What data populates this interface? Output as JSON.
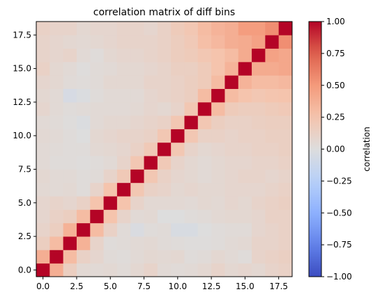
{
  "chart_data": {
    "type": "heatmap",
    "title": "correlation matrix of diff bins",
    "xlabel": "",
    "ylabel": "",
    "n_bins": 19,
    "origin": "lower",
    "x_ticks": [
      0.0,
      2.5,
      5.0,
      7.5,
      10.0,
      12.5,
      15.0,
      17.5
    ],
    "x_tick_labels": [
      "0.0",
      "2.5",
      "5.0",
      "7.5",
      "10.0",
      "12.5",
      "15.0",
      "17.5"
    ],
    "y_ticks": [
      0.0,
      2.5,
      5.0,
      7.5,
      10.0,
      12.5,
      15.0,
      17.5
    ],
    "y_tick_labels": [
      "0.0",
      "2.5",
      "5.0",
      "7.5",
      "10.0",
      "12.5",
      "15.0",
      "17.5"
    ],
    "xlim": [
      -0.5,
      18.5
    ],
    "ylim": [
      -0.5,
      18.5
    ],
    "colormap": "coolwarm",
    "vmin": -1.0,
    "vmax": 1.0,
    "colorbar": {
      "label": "correlation",
      "ticks": [
        -1.0,
        -0.75,
        -0.5,
        -0.25,
        0.0,
        0.25,
        0.5,
        0.75,
        1.0
      ],
      "tick_labels": [
        "−1.00",
        "−0.75",
        "−0.50",
        "−0.25",
        "0.00",
        "0.25",
        "0.50",
        "0.75",
        "1.00"
      ]
    },
    "matrix": [
      [
        1.0,
        0.38,
        0.15,
        0.05,
        0.04,
        0.05,
        0.03,
        0.06,
        0.1,
        0.04,
        0.03,
        0.04,
        0.06,
        0.1,
        0.06,
        0.08,
        0.06,
        0.1,
        0.12
      ],
      [
        0.38,
        1.0,
        0.3,
        0.12,
        0.08,
        0.03,
        0.02,
        0.04,
        0.06,
        0.05,
        0.06,
        0.02,
        0.03,
        0.06,
        0.04,
        0.02,
        0.1,
        0.12,
        0.14
      ],
      [
        0.15,
        0.3,
        1.0,
        0.36,
        0.1,
        0.02,
        0.03,
        0.04,
        0.05,
        0.03,
        0.02,
        0.01,
        0.01,
        0.02,
        0.04,
        0.05,
        0.1,
        0.1,
        0.12
      ],
      [
        0.1,
        0.15,
        0.36,
        1.0,
        0.3,
        0.12,
        0.03,
        -0.03,
        0.02,
        0.03,
        -0.04,
        -0.04,
        0.0,
        0.02,
        0.03,
        0.03,
        0.08,
        0.1,
        0.12
      ],
      [
        0.08,
        0.12,
        0.15,
        0.3,
        1.0,
        0.25,
        0.1,
        0.04,
        0.05,
        0.0,
        0.0,
        0.02,
        0.03,
        0.05,
        0.06,
        0.06,
        0.08,
        0.12,
        0.12
      ],
      [
        0.08,
        0.1,
        0.08,
        0.12,
        0.25,
        1.0,
        0.25,
        0.1,
        0.05,
        0.05,
        0.05,
        0.04,
        0.06,
        0.05,
        0.08,
        0.06,
        0.1,
        0.12,
        0.14
      ],
      [
        0.05,
        0.04,
        0.05,
        0.02,
        0.1,
        0.25,
        1.0,
        0.22,
        0.12,
        0.1,
        0.06,
        0.08,
        0.06,
        0.06,
        0.08,
        0.08,
        0.08,
        0.1,
        0.12
      ],
      [
        0.06,
        0.04,
        0.04,
        0.02,
        0.03,
        0.1,
        0.2,
        1.0,
        0.22,
        0.12,
        0.08,
        0.06,
        0.04,
        0.06,
        0.08,
        0.1,
        0.1,
        0.08,
        0.1
      ],
      [
        0.04,
        0.02,
        0.02,
        0.01,
        0.02,
        0.04,
        0.1,
        0.22,
        1.0,
        0.2,
        0.1,
        0.06,
        0.04,
        0.06,
        0.08,
        0.08,
        0.1,
        0.1,
        0.12
      ],
      [
        0.04,
        0.03,
        0.02,
        0.02,
        0.05,
        0.06,
        0.08,
        0.12,
        0.2,
        1.0,
        0.22,
        0.1,
        0.06,
        0.08,
        0.1,
        0.1,
        0.12,
        0.12,
        0.14
      ],
      [
        0.05,
        0.04,
        0.02,
        0.0,
        0.06,
        0.08,
        0.1,
        0.1,
        0.12,
        0.22,
        1.0,
        0.22,
        0.12,
        0.12,
        0.1,
        0.12,
        0.12,
        0.14,
        0.14
      ],
      [
        0.04,
        0.03,
        0.01,
        -0.02,
        0.04,
        0.06,
        0.06,
        0.08,
        0.1,
        0.12,
        0.22,
        1.0,
        0.22,
        0.15,
        0.12,
        0.12,
        0.14,
        0.15,
        0.15
      ],
      [
        0.08,
        0.04,
        0.02,
        0.03,
        0.04,
        0.04,
        0.04,
        0.05,
        0.08,
        0.06,
        0.1,
        0.22,
        1.0,
        0.3,
        0.18,
        0.16,
        0.16,
        0.18,
        0.2
      ],
      [
        0.06,
        0.04,
        -0.05,
        -0.02,
        0.02,
        0.04,
        0.04,
        0.04,
        0.08,
        0.1,
        0.12,
        0.15,
        0.3,
        1.0,
        0.3,
        0.25,
        0.22,
        0.24,
        0.25
      ],
      [
        0.08,
        0.06,
        0.03,
        0.02,
        0.03,
        0.06,
        0.06,
        0.06,
        0.1,
        0.1,
        0.12,
        0.15,
        0.18,
        0.3,
        1.0,
        0.35,
        0.3,
        0.3,
        0.32
      ],
      [
        0.12,
        0.06,
        0.04,
        0.01,
        0.03,
        0.04,
        0.06,
        0.06,
        0.08,
        0.1,
        0.14,
        0.14,
        0.18,
        0.25,
        0.35,
        1.0,
        0.4,
        0.4,
        0.42
      ],
      [
        0.1,
        0.08,
        0.1,
        0.04,
        0.02,
        0.06,
        0.08,
        0.08,
        0.1,
        0.12,
        0.16,
        0.18,
        0.22,
        0.25,
        0.3,
        0.4,
        1.0,
        0.45,
        0.42
      ],
      [
        0.1,
        0.08,
        0.06,
        0.05,
        0.06,
        0.08,
        0.1,
        0.1,
        0.1,
        0.12,
        0.16,
        0.2,
        0.28,
        0.32,
        0.38,
        0.4,
        0.45,
        1.0,
        0.55
      ],
      [
        0.12,
        0.1,
        0.1,
        0.06,
        0.08,
        0.08,
        0.1,
        0.1,
        0.08,
        0.12,
        0.18,
        0.22,
        0.3,
        0.35,
        0.38,
        0.48,
        0.48,
        0.55,
        1.0
      ]
    ]
  }
}
